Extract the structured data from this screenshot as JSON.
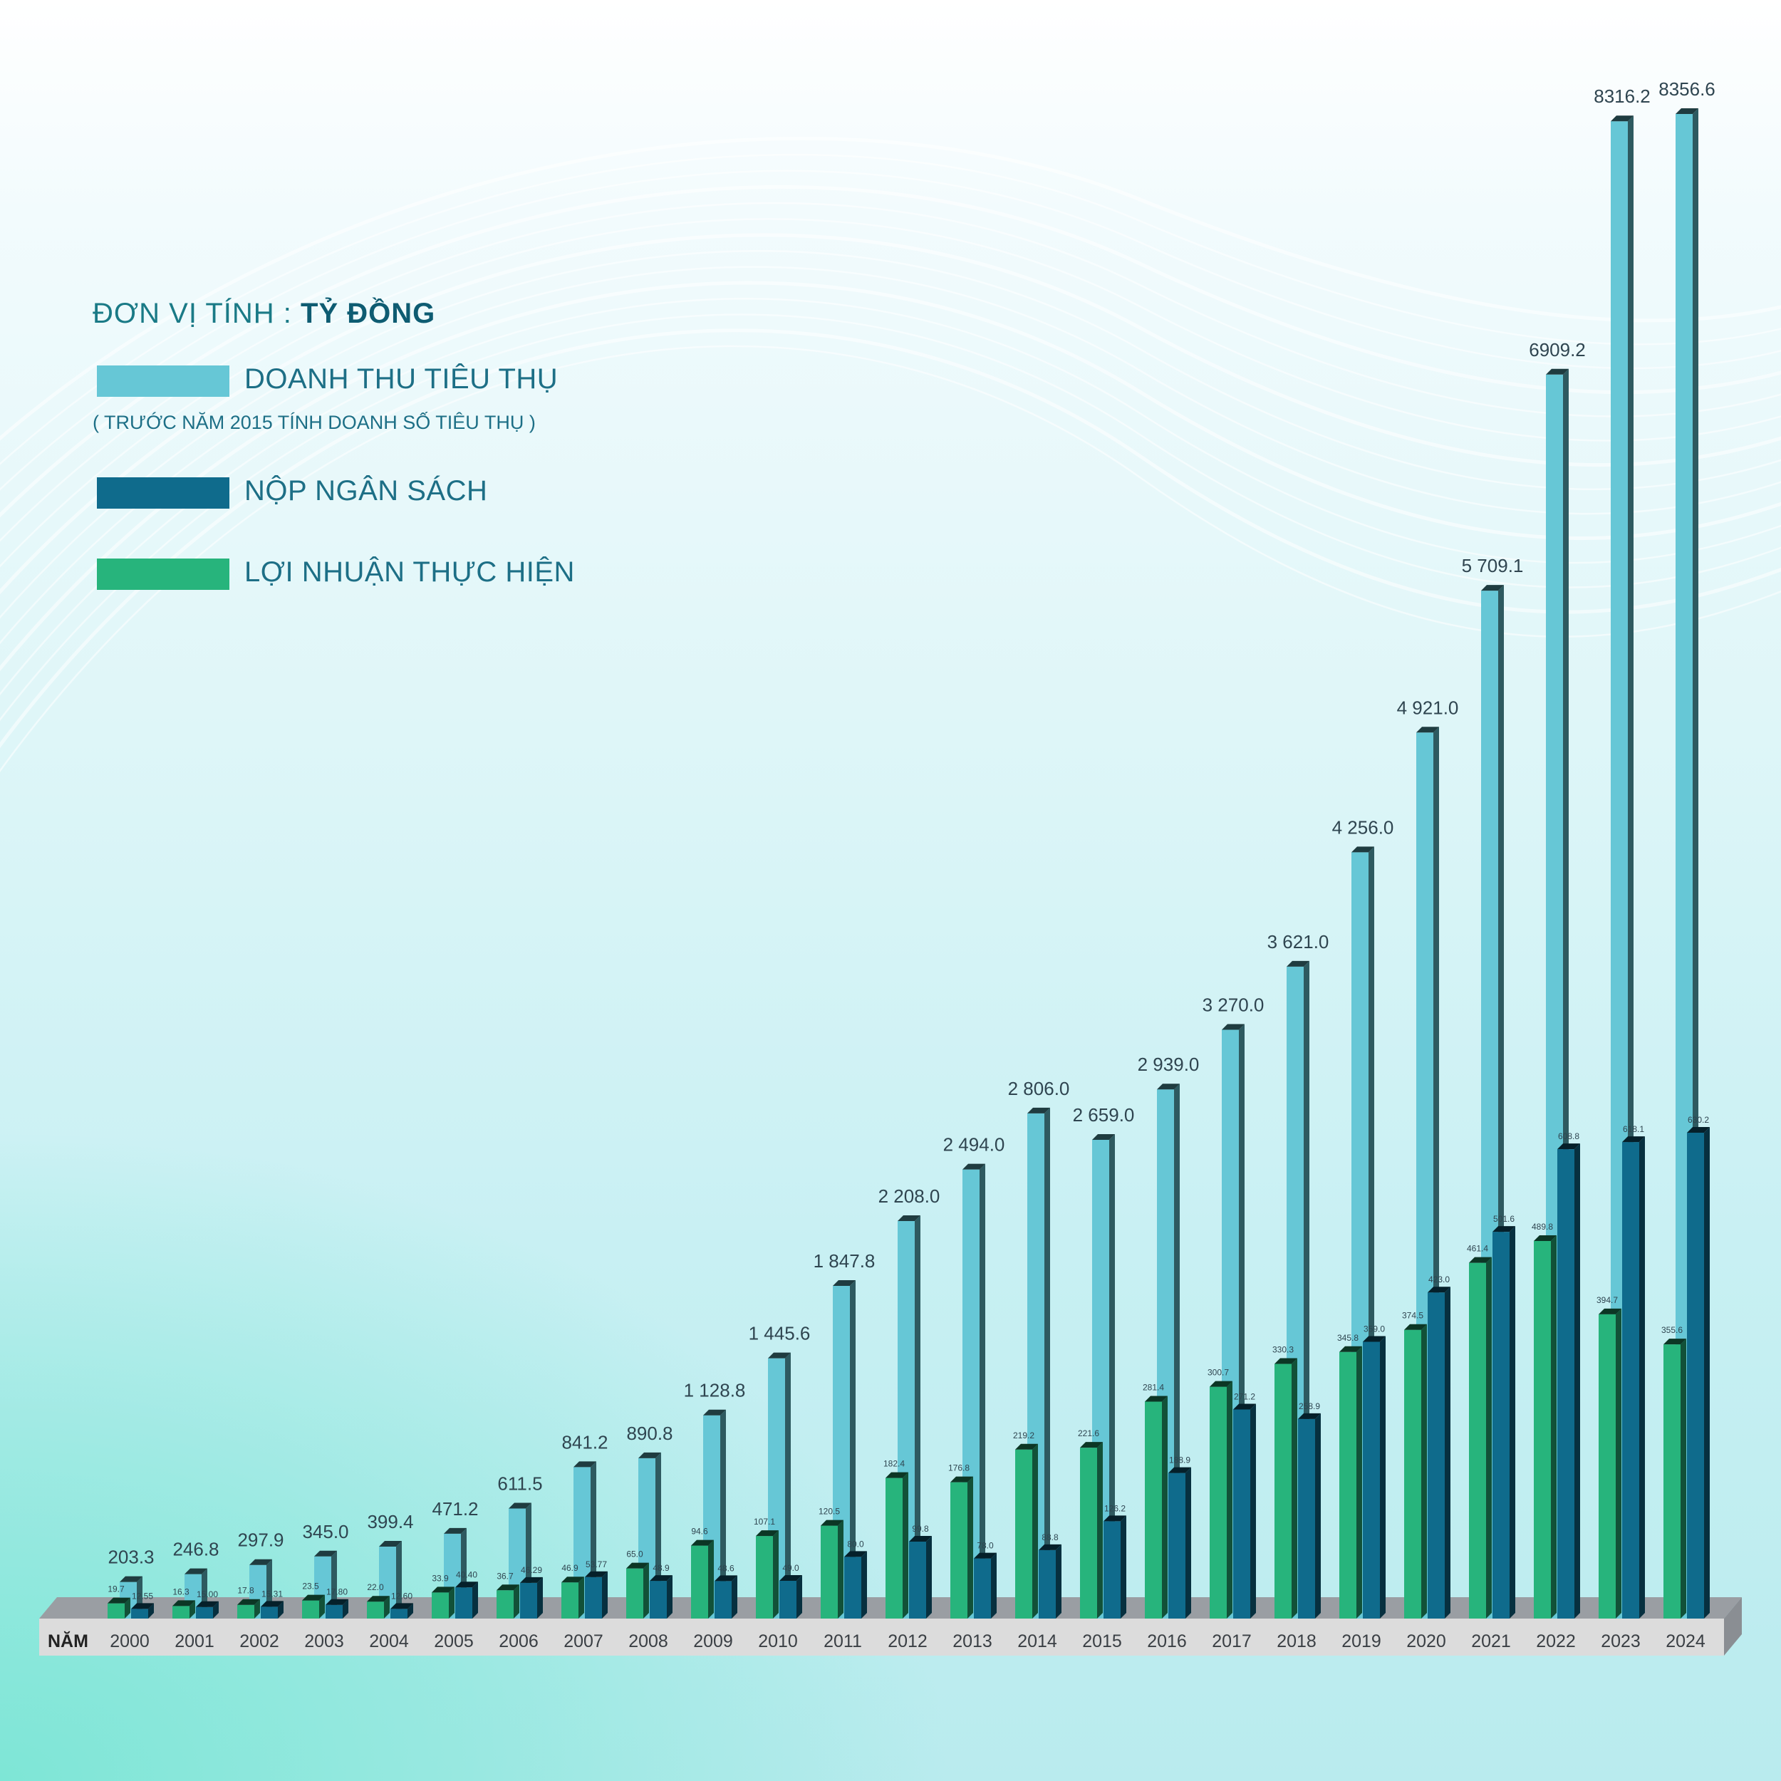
{
  "legend": {
    "unit_prefix": "ĐƠN VỊ TÍNH : ",
    "unit_value": "TỶ ĐỒNG",
    "revenue_label": "DOANH THU TIÊU THỤ",
    "revenue_note": "( TRƯỚC NĂM 2015 TÍNH DOANH SỐ TIÊU THỤ )",
    "budget_label": "NỘP NGÂN SÁCH",
    "profit_label": "LỢI NHUẬN THỰC HIỆN"
  },
  "colors": {
    "revenue": "#66c7d6",
    "budget": "#0f6b8c",
    "profit": "#27b47c"
  },
  "chart_data": {
    "type": "bar",
    "x_axis_label": "NĂM",
    "categories": [
      "2000",
      "2001",
      "2002",
      "2003",
      "2004",
      "2005",
      "2006",
      "2007",
      "2008",
      "2009",
      "2010",
      "2011",
      "2012",
      "2013",
      "2014",
      "2015",
      "2016",
      "2017",
      "2018",
      "2019",
      "2020",
      "2021",
      "2022",
      "2023",
      "2024"
    ],
    "series": [
      {
        "name": "DOANH THU TIÊU THỤ",
        "values": [
          203.3,
          246.8,
          297.9,
          345.0,
          399.4,
          471.2,
          611.5,
          841.2,
          890.8,
          1128.8,
          1445.6,
          1847.8,
          2208.0,
          2494.0,
          2806.0,
          2659.0,
          2939.0,
          3270.0,
          3621.0,
          4256.0,
          4921.0,
          5709.1,
          6909.2,
          8316.2,
          8356.6
        ],
        "labels": [
          "203.3",
          "246.8",
          "297.9",
          "345.0",
          "399.4",
          "471.2",
          "611.5",
          "841.2",
          "890.8",
          "1 128.8",
          "1 445.6",
          "1 847.8",
          "2 208.0",
          "2 494.0",
          "2 806.0",
          "2 659.0",
          "2 939.0",
          "3 270.0",
          "3 621.0",
          "4 256.0",
          "4 921.0",
          "5 709.1",
          "6909.2",
          "8316.2",
          "8356.6"
        ]
      },
      {
        "name": "LỢI NHUẬN THỰC HIỆN",
        "values": [
          19.7,
          16.3,
          17.8,
          23.5,
          22.0,
          33.9,
          36.7,
          46.9,
          65.0,
          94.6,
          107.1,
          120.5,
          182.4,
          176.8,
          219.2,
          221.6,
          281.4,
          300.7,
          330.3,
          345.8,
          374.5,
          461.4,
          489.8,
          394.7,
          355.6
        ],
        "labels": [
          "19.7",
          "16.3",
          "17.8",
          "23.5",
          "22.0",
          "33.9",
          "36.7",
          "46.9",
          "65.0",
          "94.6",
          "107.1",
          "120.5",
          "182.4",
          "176.8",
          "219.2",
          "221.6",
          "281.4",
          "300.7",
          "330.3",
          "345.8",
          "374.5",
          "461.4",
          "489.8",
          "394.7",
          "355.6"
        ]
      },
      {
        "name": "NỘP NGÂN SÁCH",
        "values": [
          12.55,
          15.0,
          15.31,
          17.8,
          12.6,
          40.4,
          46.29,
          53.77,
          48.9,
          48.6,
          49.0,
          80.0,
          99.8,
          78.0,
          88.8,
          126.2,
          188.9,
          271.2,
          258.9,
          359.0,
          423.0,
          501.6,
          608.8,
          618.1,
          630.2
        ],
        "labels": [
          "12.55",
          "15.00",
          "15.31",
          "17.80",
          "12.60",
          "40.40",
          "46.29",
          "53.77",
          "48.9",
          "48.6",
          "49.0",
          "80.0",
          "99.8",
          "78.0",
          "88.8",
          "126.2",
          "188.9",
          "271.2",
          "258.9",
          "359.0",
          "423.0",
          "501.6",
          "608.8",
          "618.1",
          "630.2"
        ]
      }
    ]
  }
}
